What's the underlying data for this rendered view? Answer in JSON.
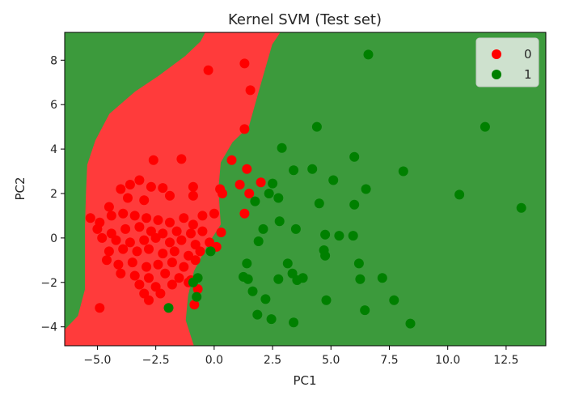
{
  "chart_data": {
    "type": "scatter",
    "title": "Kernel SVM (Test set)",
    "xlabel": "PC1",
    "ylabel": "PC2",
    "xlim": [
      -6.4,
      14.2
    ],
    "ylim": [
      -4.85,
      9.25
    ],
    "x_ticks": [
      -5.0,
      -2.5,
      0.0,
      2.5,
      5.0,
      7.5,
      10.0,
      12.5
    ],
    "x_tick_labels": [
      "−5.0",
      "−2.5",
      "0.0",
      "2.5",
      "5.0",
      "7.5",
      "10.0",
      "12.5"
    ],
    "y_ticks": [
      -4,
      -2,
      0,
      2,
      4,
      6,
      8
    ],
    "y_tick_labels": [
      "−4",
      "−2",
      "0",
      "2",
      "4",
      "6",
      "8"
    ],
    "grid": false,
    "legend_position": "top-right",
    "background_regions": {
      "class_0_color": "#ff3b3b",
      "class_1_color": "#3c9a3c",
      "class_0_region_polygon": [
        [
          -6.4,
          -4.1
        ],
        [
          -5.85,
          -3.5
        ],
        [
          -5.55,
          -2.3
        ],
        [
          -5.55,
          -1.0
        ],
        [
          -5.55,
          0.6
        ],
        [
          -5.5,
          2.2
        ],
        [
          -5.45,
          3.3
        ],
        [
          -5.1,
          4.4
        ],
        [
          -4.5,
          5.6
        ],
        [
          -3.4,
          6.6
        ],
        [
          -2.4,
          7.3
        ],
        [
          -1.25,
          8.2
        ],
        [
          -0.6,
          8.85
        ],
        [
          -0.4,
          9.25
        ],
        [
          2.85,
          9.25
        ],
        [
          2.5,
          8.7
        ],
        [
          1.9,
          6.5
        ],
        [
          1.5,
          5.0
        ],
        [
          0.8,
          4.3
        ],
        [
          0.3,
          3.4
        ],
        [
          0.2,
          2.2
        ],
        [
          0.3,
          0.6
        ],
        [
          -0.25,
          -0.3
        ],
        [
          -0.85,
          -1.5
        ],
        [
          -1.1,
          -2.6
        ],
        [
          -1.2,
          -3.7
        ],
        [
          -0.85,
          -4.85
        ],
        [
          -6.4,
          -4.85
        ]
      ]
    },
    "series": [
      {
        "name": "0",
        "color": "#ff0000",
        "points": [
          [
            1.3,
            7.85
          ],
          [
            -0.25,
            7.55
          ],
          [
            1.55,
            6.65
          ],
          [
            1.3,
            4.9
          ],
          [
            -2.6,
            3.5
          ],
          [
            -1.4,
            3.55
          ],
          [
            0.75,
            3.5
          ],
          [
            1.4,
            3.1
          ],
          [
            -4.0,
            2.2
          ],
          [
            -3.6,
            2.4
          ],
          [
            -3.2,
            2.6
          ],
          [
            -2.7,
            2.3
          ],
          [
            -2.2,
            2.25
          ],
          [
            -0.9,
            2.3
          ],
          [
            0.25,
            2.2
          ],
          [
            1.1,
            2.4
          ],
          [
            1.5,
            2.0
          ],
          [
            2.0,
            2.5
          ],
          [
            1.3,
            1.1
          ],
          [
            -4.5,
            1.4
          ],
          [
            -3.7,
            1.8
          ],
          [
            -3.0,
            1.7
          ],
          [
            -1.9,
            1.9
          ],
          [
            -0.9,
            1.9
          ],
          [
            0.35,
            2.0
          ],
          [
            -5.3,
            0.9
          ],
          [
            -4.9,
            0.7
          ],
          [
            -4.4,
            1.0
          ],
          [
            -3.9,
            1.1
          ],
          [
            -3.4,
            1.0
          ],
          [
            -2.9,
            0.9
          ],
          [
            -2.4,
            0.8
          ],
          [
            -1.9,
            0.7
          ],
          [
            -1.3,
            0.9
          ],
          [
            -0.9,
            0.6
          ],
          [
            -0.5,
            1.0
          ],
          [
            0.0,
            1.1
          ],
          [
            -5.0,
            0.4
          ],
          [
            -4.4,
            0.2
          ],
          [
            -3.8,
            0.4
          ],
          [
            -3.2,
            0.5
          ],
          [
            -2.7,
            0.3
          ],
          [
            -2.2,
            0.2
          ],
          [
            -1.6,
            0.3
          ],
          [
            -1.0,
            0.2
          ],
          [
            -0.5,
            0.3
          ],
          [
            0.3,
            0.25
          ],
          [
            -4.8,
            0.0
          ],
          [
            -4.2,
            -0.1
          ],
          [
            -3.6,
            -0.2
          ],
          [
            -3.0,
            -0.1
          ],
          [
            -2.5,
            0.0
          ],
          [
            -1.9,
            -0.2
          ],
          [
            -1.4,
            -0.1
          ],
          [
            -0.8,
            -0.3
          ],
          [
            -0.2,
            -0.2
          ],
          [
            -4.5,
            -0.6
          ],
          [
            -3.9,
            -0.5
          ],
          [
            -3.3,
            -0.6
          ],
          [
            -2.8,
            -0.5
          ],
          [
            -2.2,
            -0.7
          ],
          [
            -1.7,
            -0.6
          ],
          [
            -1.1,
            -0.8
          ],
          [
            -0.6,
            -0.6
          ],
          [
            0.1,
            -0.4
          ],
          [
            -4.6,
            -1.0
          ],
          [
            -4.1,
            -1.2
          ],
          [
            -3.5,
            -1.1
          ],
          [
            -2.9,
            -1.3
          ],
          [
            -2.4,
            -1.2
          ],
          [
            -1.8,
            -1.1
          ],
          [
            -1.3,
            -1.3
          ],
          [
            -0.8,
            -1.0
          ],
          [
            -4.0,
            -1.6
          ],
          [
            -3.4,
            -1.7
          ],
          [
            -2.8,
            -1.8
          ],
          [
            -2.1,
            -1.6
          ],
          [
            -1.5,
            -1.8
          ],
          [
            -1.0,
            -1.9
          ],
          [
            -3.2,
            -2.1
          ],
          [
            -2.5,
            -2.2
          ],
          [
            -1.8,
            -2.1
          ],
          [
            -1.1,
            -2.0
          ],
          [
            -0.7,
            -2.3
          ],
          [
            -3.0,
            -2.5
          ],
          [
            -2.3,
            -2.5
          ],
          [
            -2.8,
            -2.8
          ],
          [
            -0.85,
            -3.0
          ],
          [
            -4.9,
            -3.15
          ]
        ]
      },
      {
        "name": "1",
        "color": "#008000",
        "points": [
          [
            6.6,
            8.25
          ],
          [
            11.6,
            5.0
          ],
          [
            4.4,
            5.0
          ],
          [
            6.0,
            3.65
          ],
          [
            2.9,
            4.05
          ],
          [
            3.4,
            3.05
          ],
          [
            4.2,
            3.1
          ],
          [
            5.1,
            2.6
          ],
          [
            8.1,
            3.0
          ],
          [
            6.5,
            2.2
          ],
          [
            2.5,
            2.45
          ],
          [
            2.35,
            2.0
          ],
          [
            2.75,
            1.8
          ],
          [
            1.75,
            1.65
          ],
          [
            4.5,
            1.55
          ],
          [
            6.0,
            1.5
          ],
          [
            10.5,
            1.95
          ],
          [
            13.15,
            1.35
          ],
          [
            2.8,
            0.75
          ],
          [
            2.1,
            0.4
          ],
          [
            3.5,
            0.4
          ],
          [
            1.9,
            -0.15
          ],
          [
            4.75,
            0.15
          ],
          [
            5.35,
            0.1
          ],
          [
            5.95,
            0.1
          ],
          [
            4.7,
            -0.55
          ],
          [
            4.75,
            -0.8
          ],
          [
            1.4,
            -1.15
          ],
          [
            3.15,
            -1.15
          ],
          [
            6.2,
            -1.15
          ],
          [
            1.25,
            -1.75
          ],
          [
            1.45,
            -1.85
          ],
          [
            2.75,
            -1.85
          ],
          [
            3.35,
            -1.6
          ],
          [
            3.55,
            -1.9
          ],
          [
            3.8,
            -1.8
          ],
          [
            6.25,
            -1.85
          ],
          [
            7.2,
            -1.8
          ],
          [
            1.65,
            -2.4
          ],
          [
            2.2,
            -2.75
          ],
          [
            4.8,
            -2.8
          ],
          [
            7.7,
            -2.8
          ],
          [
            6.45,
            -3.25
          ],
          [
            1.85,
            -3.45
          ],
          [
            2.45,
            -3.65
          ],
          [
            3.4,
            -3.8
          ],
          [
            8.4,
            -3.85
          ],
          [
            -0.75,
            -2.65
          ],
          [
            -1.95,
            -3.15
          ],
          [
            -0.9,
            -2.0
          ],
          [
            -0.7,
            -1.8
          ],
          [
            -0.15,
            -0.6
          ]
        ]
      }
    ]
  }
}
